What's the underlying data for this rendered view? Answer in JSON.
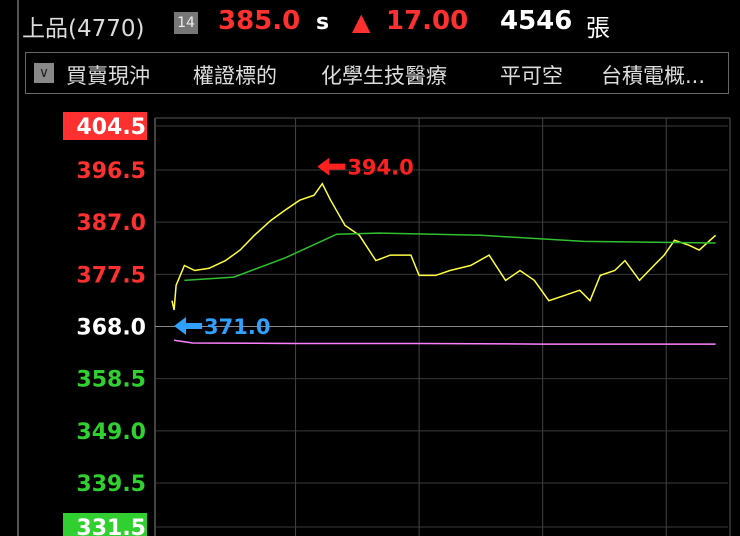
{
  "header": {
    "name": "上品(4770)",
    "badge": "14",
    "price": "385.0",
    "price_flag": "s",
    "change": "17.00",
    "volume": "4546",
    "volume_unit": "張"
  },
  "tags": [
    "買賣現沖",
    "權證標的",
    "化學生技醫療",
    "平可空",
    "台積電概..."
  ],
  "chart_data": {
    "type": "line",
    "xlim": [
      0,
      270
    ],
    "xgrid": [
      60,
      120,
      180,
      240
    ],
    "ylim": [
      331.5,
      404.5
    ],
    "yticks": [
      404.5,
      396.5,
      {
        "value": 387,
        "label": "387.0"
      },
      377.5,
      {
        "value": 368,
        "label": "368.0"
      },
      358.5,
      {
        "value": 349,
        "label": "349.0"
      },
      339.5,
      331.5
    ],
    "reference": 368,
    "grid": true,
    "series": [
      {
        "color": "#ffff40",
        "x": [
          0,
          1,
          2,
          6,
          11,
          18,
          26,
          33,
          40,
          48,
          55,
          62,
          69,
          73,
          77,
          84,
          91,
          99,
          106,
          116,
          120,
          128,
          135,
          145,
          154,
          162,
          169,
          176,
          183,
          191,
          198,
          203,
          208,
          215,
          220,
          227,
          234,
          239,
          244,
          251,
          256,
          264
        ],
        "values": [
          372.7,
          371.0,
          375.5,
          379.1,
          378.2,
          378.6,
          380.0,
          381.9,
          384.6,
          387.3,
          389.2,
          391.0,
          391.9,
          394.0,
          391.0,
          386.4,
          384.6,
          380.0,
          381.0,
          381.0,
          377.3,
          377.3,
          378.2,
          379.1,
          381.0,
          376.4,
          378.2,
          376.4,
          372.7,
          373.7,
          374.6,
          372.7,
          377.3,
          378.2,
          380.0,
          376.4,
          379.1,
          381.0,
          383.7,
          382.8,
          381.9,
          384.6
        ]
      },
      {
        "color": "#30c030",
        "x": [
          6,
          30,
          55,
          80,
          100,
          150,
          200,
          264
        ],
        "values": [
          376.4,
          377.0,
          380.5,
          384.8,
          385.0,
          384.6,
          383.5,
          383.2
        ]
      },
      {
        "color": "#ff80ff",
        "x": [
          1,
          10,
          60,
          120,
          180,
          264
        ],
        "values": [
          365.5,
          365.0,
          364.9,
          364.9,
          364.8,
          364.8
        ]
      }
    ],
    "annotations": [
      {
        "x": 73,
        "y": 394.0,
        "label": "394.0",
        "color": "#ff2020"
      },
      {
        "x": 1,
        "y": 371.0,
        "label": "371.0",
        "color": "#30a0ff"
      }
    ]
  }
}
